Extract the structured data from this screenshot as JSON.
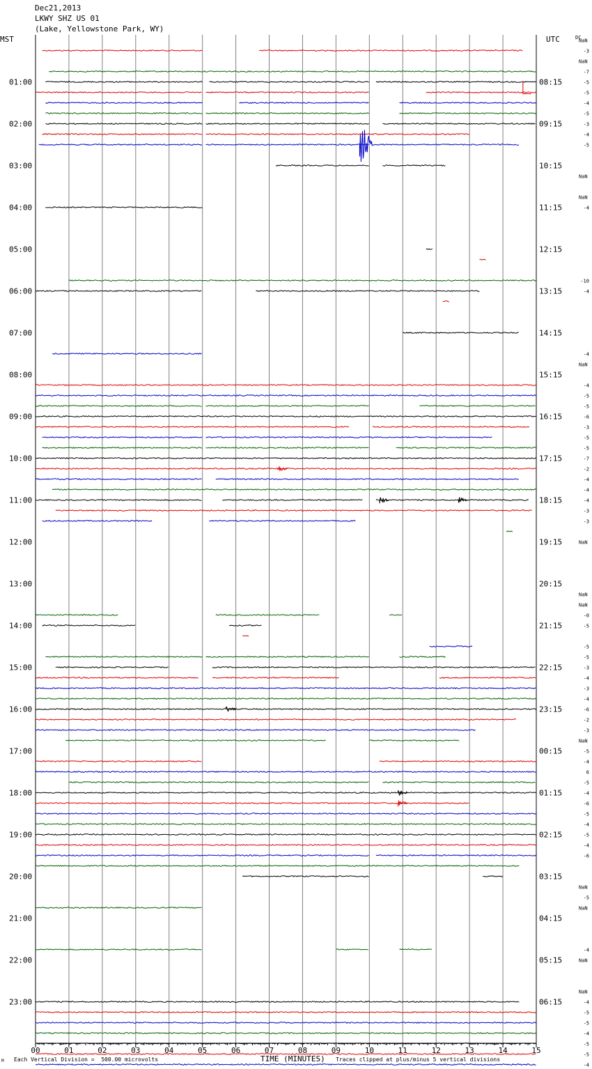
{
  "header": {
    "date": "Dec21,2013",
    "station": "LKWY SHZ US 01",
    "location": "(Lake, Yellowstone Park, WY)"
  },
  "left_axis_title": "MST",
  "right_axis_title": "UTC",
  "dc_title": "DC",
  "footer": {
    "scale_note": "Each Vertical Division =  500.00 microvolts",
    "xlabel": "TIME (MINUTES)",
    "clip_note": "Traces clipped at plus/minus 5 vertical divisions",
    "corner_mark": "M"
  },
  "colors": {
    "black": "#000000",
    "red": "#e00000",
    "blue": "#0000c8",
    "green": "#006400",
    "grid": "#808080"
  },
  "chart_data": {
    "type": "line",
    "title": "Dec21,2013 LKWY SHZ US 01 (Lake, Yellowstone Park, WY)",
    "xlabel": "TIME (MINUTES)",
    "xlim": [
      0,
      15
    ],
    "x_ticks": [
      "00",
      "01",
      "02",
      "03",
      "04",
      "05",
      "06",
      "07",
      "08",
      "09",
      "10",
      "11",
      "12",
      "13",
      "14",
      "15"
    ],
    "row_minutes": 15,
    "rows_per_hour": 4,
    "color_cycle": [
      "black",
      "red",
      "blue",
      "green"
    ],
    "left_time_labels": [
      "01:00",
      "02:00",
      "03:00",
      "04:00",
      "05:00",
      "06:00",
      "07:00",
      "08:00",
      "09:00",
      "10:00",
      "11:00",
      "12:00",
      "13:00",
      "14:00",
      "15:00",
      "16:00",
      "17:00",
      "18:00",
      "19:00",
      "20:00",
      "21:00",
      "22:00",
      "23:00"
    ],
    "right_time_labels": [
      "08:15",
      "09:15",
      "10:15",
      "11:15",
      "12:15",
      "13:15",
      "14:15",
      "15:15",
      "16:15",
      "17:15",
      "18:15",
      "19:15",
      "20:15",
      "21:15",
      "22:15",
      "23:15",
      "00:15",
      "01:15",
      "02:15",
      "03:15",
      "04:15",
      "05:15",
      "06:15"
    ],
    "dc_offsets": [
      {
        "row": 0,
        "text": "NaN"
      },
      {
        "row": 1,
        "text": "-3"
      },
      {
        "row": 2,
        "text": "NaN"
      },
      {
        "row": 3,
        "text": "-7"
      },
      {
        "row": 4,
        "text": "-5"
      },
      {
        "row": 5,
        "text": "-5"
      },
      {
        "row": 6,
        "text": "-4"
      },
      {
        "row": 7,
        "text": "-5"
      },
      {
        "row": 8,
        "text": "-3"
      },
      {
        "row": 9,
        "text": "-4"
      },
      {
        "row": 10,
        "text": "-5"
      },
      {
        "row": 13,
        "text": "NaN"
      },
      {
        "row": 15,
        "text": "NaN"
      },
      {
        "row": 16,
        "text": "-4"
      },
      {
        "row": 23,
        "text": "-10"
      },
      {
        "row": 24,
        "text": "-4"
      },
      {
        "row": 30,
        "text": "-4"
      },
      {
        "row": 31,
        "text": "NaN"
      },
      {
        "row": 33,
        "text": "-4"
      },
      {
        "row": 34,
        "text": "-5"
      },
      {
        "row": 35,
        "text": "-5"
      },
      {
        "row": 36,
        "text": "-6"
      },
      {
        "row": 37,
        "text": "-3"
      },
      {
        "row": 38,
        "text": "-5"
      },
      {
        "row": 39,
        "text": "-5"
      },
      {
        "row": 40,
        "text": "-7"
      },
      {
        "row": 41,
        "text": "-2"
      },
      {
        "row": 42,
        "text": "-4"
      },
      {
        "row": 43,
        "text": "-4"
      },
      {
        "row": 44,
        "text": "-4"
      },
      {
        "row": 45,
        "text": "-3"
      },
      {
        "row": 46,
        "text": "-3"
      },
      {
        "row": 48,
        "text": "NaN"
      },
      {
        "row": 53,
        "text": "NaN"
      },
      {
        "row": 54,
        "text": "NaN"
      },
      {
        "row": 55,
        "text": "-0"
      },
      {
        "row": 56,
        "text": "-5"
      },
      {
        "row": 58,
        "text": "-5"
      },
      {
        "row": 59,
        "text": "-5"
      },
      {
        "row": 60,
        "text": "-3"
      },
      {
        "row": 61,
        "text": "-4"
      },
      {
        "row": 62,
        "text": "-3"
      },
      {
        "row": 63,
        "text": "-4"
      },
      {
        "row": 64,
        "text": "-6"
      },
      {
        "row": 65,
        "text": "-2"
      },
      {
        "row": 66,
        "text": "-3"
      },
      {
        "row": 67,
        "text": "NaN"
      },
      {
        "row": 68,
        "text": "-5"
      },
      {
        "row": 69,
        "text": "-4"
      },
      {
        "row": 70,
        "text": "6"
      },
      {
        "row": 71,
        "text": "-5"
      },
      {
        "row": 72,
        "text": "-4"
      },
      {
        "row": 73,
        "text": "-6"
      },
      {
        "row": 74,
        "text": "-5"
      },
      {
        "row": 75,
        "text": "-4"
      },
      {
        "row": 76,
        "text": "-5"
      },
      {
        "row": 77,
        "text": "-4"
      },
      {
        "row": 78,
        "text": "-6"
      },
      {
        "row": 81,
        "text": "NaN"
      },
      {
        "row": 82,
        "text": "-5"
      },
      {
        "row": 83,
        "text": "NaN"
      },
      {
        "row": 87,
        "text": "-4"
      },
      {
        "row": 88,
        "text": "NaN"
      },
      {
        "row": 91,
        "text": "NaN"
      },
      {
        "row": 92,
        "text": "-4"
      },
      {
        "row": 93,
        "text": "-5"
      },
      {
        "row": 94,
        "text": "-5"
      },
      {
        "row": 95,
        "text": "-4"
      },
      {
        "row": 96,
        "text": "-5"
      },
      {
        "row": 97,
        "text": "-5"
      },
      {
        "row": 98,
        "text": "-4"
      }
    ],
    "segments": [
      [
        1,
        0.2,
        5.0
      ],
      [
        1,
        6.7,
        14.6
      ],
      [
        3,
        0.4,
        15.0
      ],
      [
        4,
        0.3,
        5.0
      ],
      [
        4,
        5.2,
        10.0
      ],
      [
        4,
        10.2,
        15.0
      ],
      [
        5,
        0.0,
        5.0
      ],
      [
        5,
        5.1,
        10.0
      ],
      [
        5,
        11.7,
        15.0
      ],
      [
        6,
        0.3,
        5.0
      ],
      [
        6,
        6.1,
        10.0
      ],
      [
        6,
        10.9,
        15.0
      ],
      [
        7,
        0.3,
        5.0
      ],
      [
        7,
        5.1,
        10.0
      ],
      [
        7,
        10.9,
        15.0
      ],
      [
        8,
        0.3,
        5.0
      ],
      [
        8,
        5.1,
        10.0
      ],
      [
        8,
        10.4,
        15.0
      ],
      [
        9,
        0.2,
        5.0
      ],
      [
        9,
        5.1,
        13.0
      ],
      [
        10,
        0.1,
        5.0
      ],
      [
        10,
        5.1,
        10.0
      ],
      [
        10,
        10.1,
        14.5
      ],
      [
        12,
        7.2,
        10.0
      ],
      [
        12,
        10.4,
        12.3
      ],
      [
        16,
        0.3,
        5.0
      ],
      [
        20,
        11.7,
        11.9
      ],
      [
        21,
        13.3,
        13.5
      ],
      [
        23,
        1.0,
        15.0
      ],
      [
        24,
        0.0,
        5.0
      ],
      [
        24,
        6.6,
        13.3
      ],
      [
        25,
        12.2,
        12.4
      ],
      [
        28,
        11.0,
        14.5
      ],
      [
        30,
        0.5,
        5.0
      ],
      [
        33,
        0.0,
        15.0
      ],
      [
        34,
        0.0,
        15.0
      ],
      [
        35,
        0.0,
        5.0
      ],
      [
        35,
        5.1,
        10.0
      ],
      [
        35,
        11.5,
        15.0
      ],
      [
        36,
        0.0,
        15.0
      ],
      [
        37,
        0.0,
        9.4
      ],
      [
        37,
        10.1,
        14.8
      ],
      [
        38,
        0.2,
        5.0
      ],
      [
        38,
        5.1,
        13.7
      ],
      [
        39,
        0.2,
        5.0
      ],
      [
        39,
        5.1,
        10.0
      ],
      [
        39,
        10.8,
        15.0
      ],
      [
        40,
        0.0,
        15.0
      ],
      [
        41,
        0.0,
        15.0
      ],
      [
        42,
        0.0,
        5.0
      ],
      [
        42,
        5.4,
        14.5
      ],
      [
        43,
        0.5,
        15.0
      ],
      [
        44,
        0.0,
        5.0
      ],
      [
        44,
        5.6,
        9.8
      ],
      [
        44,
        10.2,
        14.8
      ],
      [
        45,
        0.6,
        14.9
      ],
      [
        46,
        0.2,
        3.5
      ],
      [
        46,
        5.2,
        9.6
      ],
      [
        47,
        14.1,
        14.3
      ],
      [
        55,
        0.0,
        2.5
      ],
      [
        55,
        5.4,
        8.5
      ],
      [
        55,
        10.6,
        11.0
      ],
      [
        56,
        0.2,
        3.0
      ],
      [
        56,
        5.8,
        6.8
      ],
      [
        57,
        6.2,
        6.4
      ],
      [
        58,
        11.8,
        13.1
      ],
      [
        59,
        0.3,
        5.0
      ],
      [
        59,
        5.1,
        10.0
      ],
      [
        59,
        10.9,
        12.3
      ],
      [
        60,
        0.6,
        4.0
      ],
      [
        60,
        5.3,
        15.0
      ],
      [
        61,
        0.0,
        4.9
      ],
      [
        61,
        5.3,
        9.1
      ],
      [
        61,
        12.1,
        15.0
      ],
      [
        62,
        0.0,
        15.0
      ],
      [
        63,
        0.0,
        15.0
      ],
      [
        64,
        0.0,
        15.0
      ],
      [
        65,
        0.0,
        14.4
      ],
      [
        66,
        0.0,
        13.2
      ],
      [
        67,
        0.9,
        8.7
      ],
      [
        67,
        10.0,
        12.7
      ],
      [
        69,
        0.0,
        5.0
      ],
      [
        69,
        10.3,
        15.0
      ],
      [
        70,
        0.0,
        15.0
      ],
      [
        71,
        1.0,
        10.0
      ],
      [
        71,
        10.4,
        15.0
      ],
      [
        72,
        0.0,
        15.0
      ],
      [
        73,
        0.0,
        13.0
      ],
      [
        74,
        0.0,
        15.0
      ],
      [
        75,
        0.0,
        15.0
      ],
      [
        76,
        0.0,
        15.0
      ],
      [
        77,
        0.0,
        15.0
      ],
      [
        78,
        0.0,
        10.0
      ],
      [
        78,
        10.2,
        15.0
      ],
      [
        79,
        0.0,
        14.5
      ],
      [
        80,
        6.2,
        10.0
      ],
      [
        80,
        13.4,
        14.0
      ],
      [
        83,
        0.0,
        5.0
      ],
      [
        87,
        0.0,
        5.0
      ],
      [
        87,
        9.0,
        10.0
      ],
      [
        87,
        10.9,
        11.9
      ],
      [
        92,
        0.0,
        14.5
      ],
      [
        93,
        0.0,
        15.0
      ],
      [
        94,
        0.0,
        15.0
      ],
      [
        95,
        0.0,
        15.0
      ],
      [
        96,
        0.0,
        15.0
      ],
      [
        97,
        0.0,
        15.0
      ],
      [
        98,
        0.0,
        15.0
      ]
    ],
    "events": [
      {
        "row": 5,
        "minute": 14.6,
        "kind": "step"
      },
      {
        "row": 10,
        "minute": 9.75,
        "kind": "earthquake",
        "amplitude": "clipped"
      },
      {
        "row": 41,
        "minute": 7.3,
        "kind": "burst"
      },
      {
        "row": 44,
        "minute": 10.35,
        "kind": "burst"
      },
      {
        "row": 44,
        "minute": 12.7,
        "kind": "burst"
      },
      {
        "row": 64,
        "minute": 5.75,
        "kind": "burst"
      },
      {
        "row": 72,
        "minute": 10.9,
        "kind": "burst"
      },
      {
        "row": 73,
        "minute": 10.9,
        "kind": "burst"
      }
    ]
  }
}
